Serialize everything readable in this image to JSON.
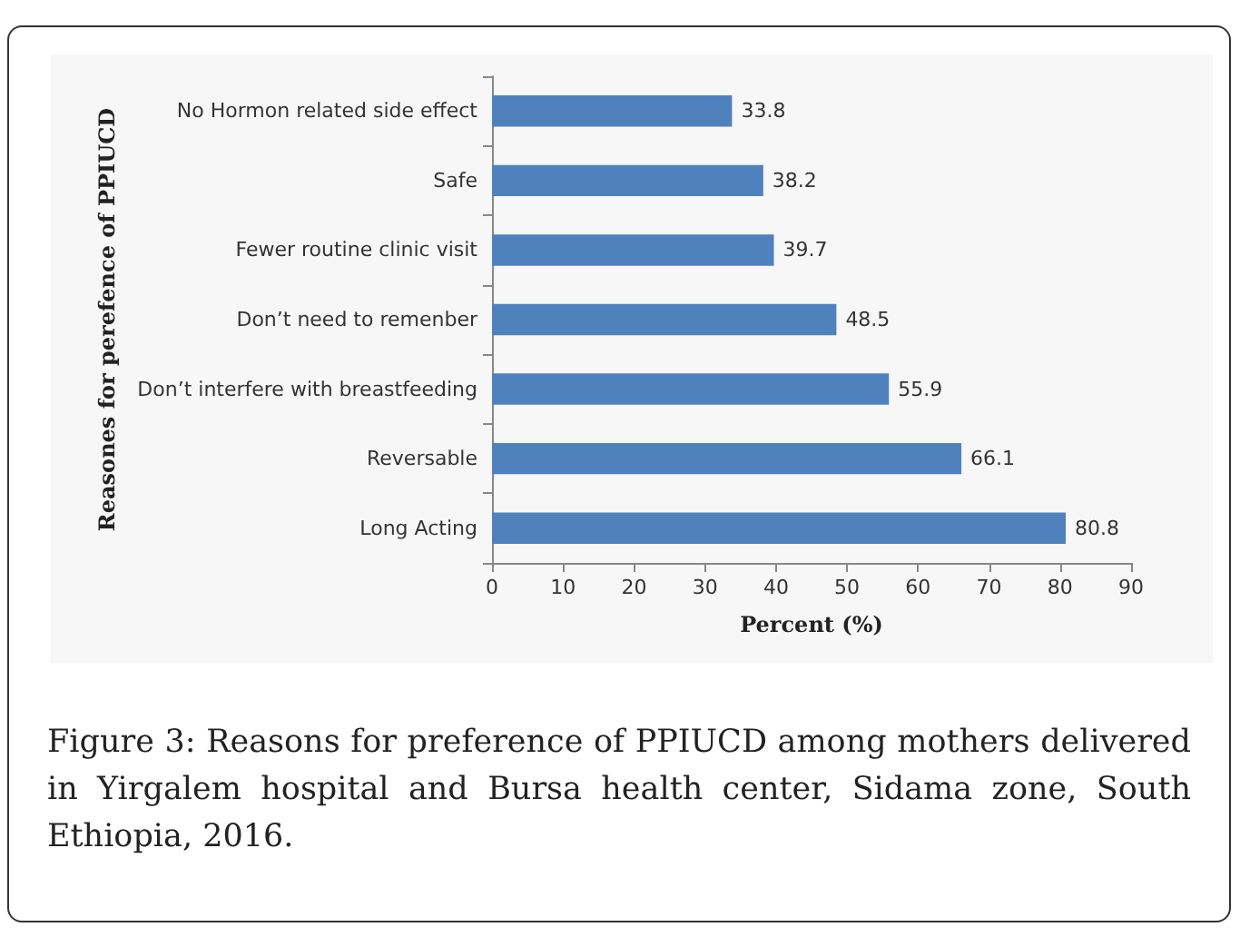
{
  "chart_data": {
    "type": "bar",
    "orientation": "horizontal",
    "title": "Figure 3: Reasons for preference of PPIUCD among mothers delivered in Yirgalem hospital and Bursa health center, Sidama zone, South Ethiopia, 2016.",
    "xlabel": "Percent (%)",
    "ylabel": "Reasones for perefence of PPIUCD",
    "categories": [
      "No Hormon related side effect",
      "Safe",
      "Fewer routine clinic visit",
      "Don’t need to remenber",
      "Don’t interfere with breastfeeding",
      "Reversable",
      "Long Acting"
    ],
    "values": [
      33.8,
      38.2,
      39.7,
      48.5,
      55.9,
      66.1,
      80.8
    ],
    "color": "#4f81bd",
    "xlim": [
      0,
      90
    ],
    "xticks": [
      0,
      10,
      20,
      30,
      40,
      50,
      60,
      70,
      80,
      90
    ],
    "data_labels": true,
    "grid": false
  }
}
